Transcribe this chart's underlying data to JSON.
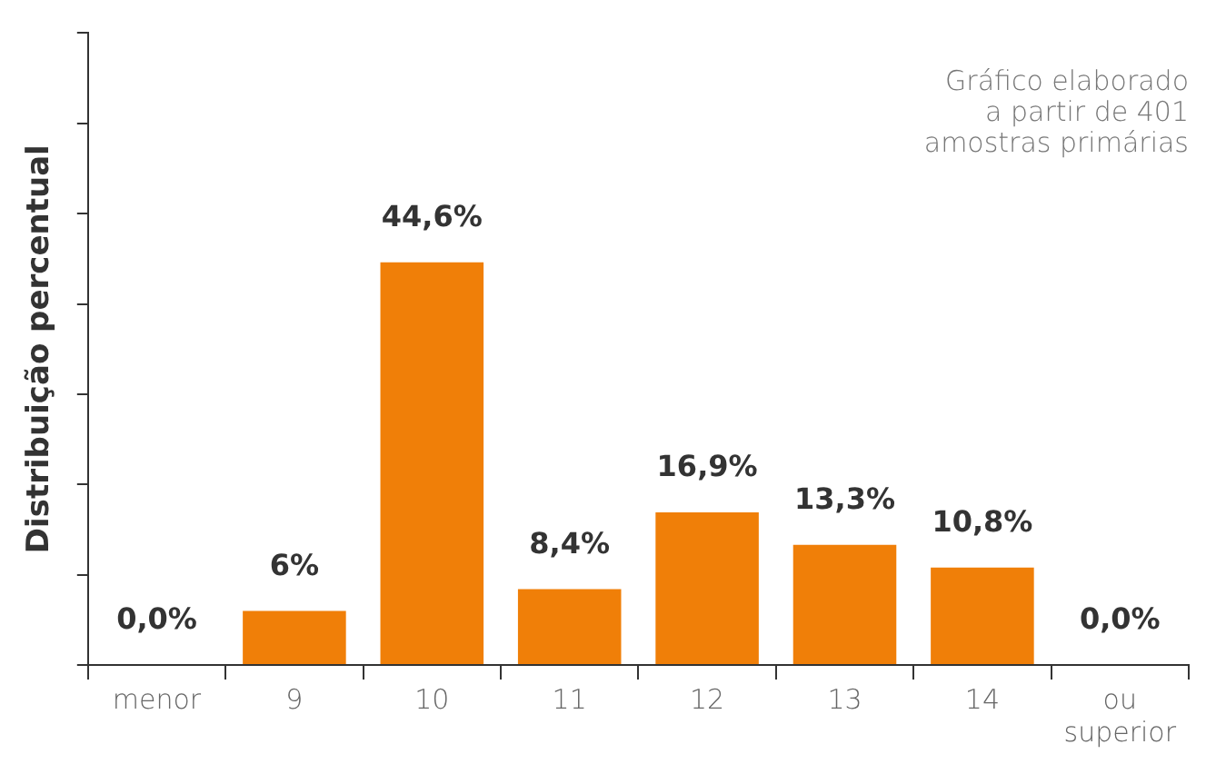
{
  "chart_data": {
    "type": "bar",
    "ylabel": "Distribuição percentual",
    "annotations": [
      "Gráfico elaborado\na partir de 401\namostras primárias"
    ],
    "categories": [
      "menor",
      "9",
      "10",
      "11",
      "12",
      "13",
      "14",
      "ou superior"
    ],
    "values": [
      0.0,
      6,
      44.6,
      8.4,
      16.9,
      13.3,
      10.8,
      0.0
    ],
    "value_labels": [
      "0,0%",
      "6%",
      "44,6%",
      "8,4%",
      "16,9%",
      "13,3%",
      "10,8%",
      "0,0%"
    ],
    "color": "#f07f08",
    "ylim": [
      0,
      70
    ],
    "yticks": [
      {
        "value": 0,
        "label": null
      },
      {
        "value": 10,
        "label": null
      },
      {
        "value": 20,
        "label": null
      },
      {
        "value": 30,
        "label": null
      },
      {
        "value": 40,
        "label": null
      },
      {
        "value": 50,
        "label": null
      },
      {
        "value": 60,
        "label": null
      },
      {
        "value": 70,
        "label": null
      }
    ],
    "tick_labels": "x",
    "grid": false,
    "legend": false
  }
}
